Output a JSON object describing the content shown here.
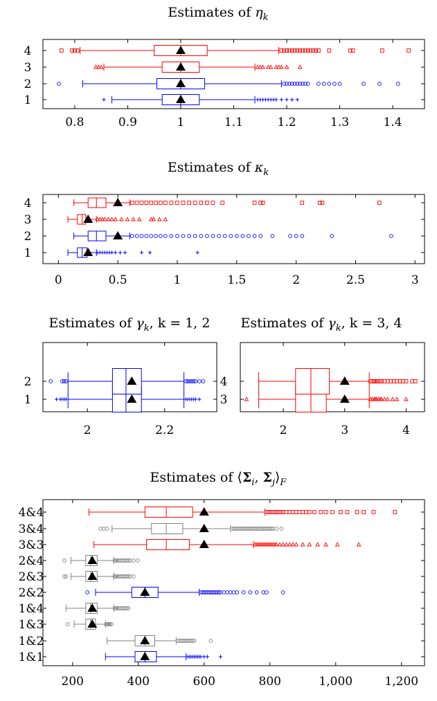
{
  "colors": {
    "blue": "#0000ff",
    "red": "#ff0000",
    "gray": "#808080",
    "mean": "#000000"
  },
  "chart_data": [
    {
      "type": "boxplot",
      "orientation": "horizontal",
      "title_prefix": "Estimates of ",
      "title_symbol": "η",
      "title_sub": "k",
      "title_suffix": "",
      "xlim": [
        0.74,
        1.46
      ],
      "xticks": [
        0.8,
        0.9,
        1,
        1.1,
        1.2,
        1.3,
        1.4
      ],
      "xtick_labels": [
        "0.8",
        "0.9",
        "1",
        "1.1",
        "1.2",
        "1.3",
        "1.4"
      ],
      "boxes": [
        {
          "label": "1",
          "color": "blue",
          "outlier": "plus",
          "whisker_low": 0.87,
          "q1": 0.965,
          "median": 1.0,
          "q3": 1.035,
          "whisker_high": 1.14,
          "mean": 1.0,
          "outliers_low": [
            0.855
          ],
          "outliers_high": [
            1.145,
            1.15,
            1.155,
            1.16,
            1.165,
            1.17,
            1.175,
            1.18,
            1.19,
            1.2,
            1.21,
            1.22
          ]
        },
        {
          "label": "2",
          "color": "blue",
          "outlier": "circle",
          "whisker_low": 0.815,
          "q1": 0.955,
          "median": 1.0,
          "q3": 1.045,
          "whisker_high": 1.19,
          "mean": 1.0,
          "outliers_low": [
            0.77
          ],
          "outliers_high": [
            1.195,
            1.2,
            1.205,
            1.21,
            1.215,
            1.22,
            1.225,
            1.23,
            1.235,
            1.24,
            1.26,
            1.27,
            1.28,
            1.29,
            1.3,
            1.345,
            1.375,
            1.41
          ]
        },
        {
          "label": "3",
          "color": "red",
          "outlier": "triangle",
          "whisker_low": 0.855,
          "q1": 0.965,
          "median": 1.0,
          "q3": 1.035,
          "whisker_high": 1.14,
          "mean": 1.0,
          "outliers_low": [
            0.84,
            0.845,
            0.85
          ],
          "outliers_high": [
            1.145,
            1.15,
            1.155,
            1.165,
            1.17,
            1.18,
            1.185,
            1.19,
            1.2,
            1.225
          ]
        },
        {
          "label": "4",
          "color": "red",
          "outlier": "square",
          "whisker_low": 0.81,
          "q1": 0.95,
          "median": 1.0,
          "q3": 1.05,
          "whisker_high": 1.185,
          "mean": 1.0,
          "outliers_low": [
            0.775,
            0.795,
            0.8,
            0.805
          ],
          "outliers_high": [
            1.19,
            1.195,
            1.2,
            1.205,
            1.21,
            1.215,
            1.22,
            1.225,
            1.23,
            1.235,
            1.24,
            1.245,
            1.25,
            1.255,
            1.26,
            1.28,
            1.32,
            1.325,
            1.38,
            1.43
          ]
        }
      ]
    },
    {
      "type": "boxplot",
      "orientation": "horizontal",
      "title_prefix": "Estimates of ",
      "title_symbol": "κ",
      "title_sub": "k",
      "title_suffix": "",
      "xlim": [
        -0.13,
        3.08
      ],
      "xticks": [
        0,
        0.5,
        1,
        1.5,
        2,
        2.5,
        3
      ],
      "xtick_labels": [
        "0",
        "0.5",
        "1",
        "1.5",
        "2",
        "2.5",
        "3"
      ],
      "boxes": [
        {
          "label": "1",
          "color": "blue",
          "outlier": "plus",
          "whisker_low": 0.08,
          "q1": 0.16,
          "median": 0.2,
          "q3": 0.24,
          "whisker_high": 0.32,
          "mean": 0.25,
          "outliers_low": [],
          "outliers_high": [
            0.33,
            0.35,
            0.37,
            0.39,
            0.41,
            0.43,
            0.45,
            0.48,
            0.52,
            0.56,
            0.7,
            0.77,
            1.17
          ]
        },
        {
          "label": "2",
          "color": "blue",
          "outlier": "circle",
          "whisker_low": 0.13,
          "q1": 0.25,
          "median": 0.32,
          "q3": 0.4,
          "whisker_high": 0.6,
          "mean": 0.5,
          "outliers_low": [],
          "outliers_high": [
            0.62,
            0.66,
            0.7,
            0.74,
            0.78,
            0.82,
            0.86,
            0.9,
            0.95,
            1.0,
            1.05,
            1.1,
            1.15,
            1.2,
            1.25,
            1.3,
            1.35,
            1.4,
            1.45,
            1.5,
            1.55,
            1.6,
            1.65,
            1.7,
            1.8,
            1.95,
            2.0,
            2.05,
            2.3,
            2.8
          ]
        },
        {
          "label": "3",
          "color": "red",
          "outlier": "triangle",
          "whisker_low": 0.08,
          "q1": 0.16,
          "median": 0.2,
          "q3": 0.23,
          "whisker_high": 0.32,
          "mean": 0.25,
          "outliers_low": [],
          "outliers_high": [
            0.33,
            0.35,
            0.37,
            0.39,
            0.42,
            0.45,
            0.48,
            0.53,
            0.58,
            0.63,
            0.68,
            0.78,
            0.8,
            0.85,
            0.9
          ]
        },
        {
          "label": "4",
          "color": "red",
          "outlier": "square",
          "whisker_low": 0.13,
          "q1": 0.25,
          "median": 0.32,
          "q3": 0.4,
          "whisker_high": 0.6,
          "mean": 0.5,
          "outliers_low": [],
          "outliers_high": [
            0.62,
            0.66,
            0.7,
            0.74,
            0.78,
            0.82,
            0.86,
            0.9,
            0.95,
            1.0,
            1.05,
            1.1,
            1.15,
            1.2,
            1.25,
            1.3,
            1.38,
            1.65,
            1.7,
            1.72,
            2.05,
            2.2,
            2.22,
            2.7
          ]
        }
      ]
    },
    {
      "type": "boxplot",
      "orientation": "horizontal",
      "title_prefix": "Estimates of ",
      "title_symbol": "γ",
      "title_sub": "k",
      "title_suffix": ", k = 1, 2",
      "xlim": [
        1.885,
        2.335
      ],
      "xticks": [
        2,
        2.2
      ],
      "xtick_labels": [
        "2",
        "2.2"
      ],
      "boxes": [
        {
          "label": "1",
          "color": "blue",
          "outlier": "plus",
          "whisker_low": 1.95,
          "q1": 2.065,
          "median": 2.1,
          "q3": 2.14,
          "whisker_high": 2.25,
          "mean": 2.115,
          "outliers_low": [
            1.92,
            1.93,
            1.935,
            1.94,
            1.945
          ],
          "outliers_high": [
            2.255,
            2.26,
            2.265,
            2.27,
            2.275,
            2.28,
            2.29
          ]
        },
        {
          "label": "2",
          "color": "blue",
          "outlier": "circle",
          "whisker_low": 1.95,
          "q1": 2.065,
          "median": 2.1,
          "q3": 2.14,
          "whisker_high": 2.25,
          "mean": 2.115,
          "outliers_low": [
            1.905,
            1.935,
            1.94,
            1.945
          ],
          "outliers_high": [
            2.255,
            2.26,
            2.265,
            2.27,
            2.275,
            2.28,
            2.29,
            2.3
          ]
        }
      ]
    },
    {
      "type": "boxplot",
      "orientation": "horizontal",
      "title_prefix": "Estimates of ",
      "title_symbol": "γ",
      "title_sub": "k",
      "title_suffix": ", k = 3, 4",
      "xlim": [
        1.3,
        4.3
      ],
      "xticks": [
        2,
        3,
        4
      ],
      "xtick_labels": [
        "2",
        "3",
        "4"
      ],
      "boxes": [
        {
          "label": "3",
          "color": "red",
          "outlier": "triangle",
          "whisker_low": 1.6,
          "q1": 2.2,
          "median": 2.45,
          "q3": 2.7,
          "whisker_high": 3.4,
          "mean": 3.0,
          "outliers_low": [
            1.4
          ],
          "outliers_high": [
            3.42,
            3.45,
            3.48,
            3.5,
            3.52,
            3.55,
            3.58,
            3.6,
            3.65,
            3.7,
            3.78,
            3.85,
            4.0
          ]
        },
        {
          "label": "4",
          "color": "red",
          "outlier": "square",
          "whisker_low": 1.6,
          "q1": 2.2,
          "median": 2.45,
          "q3": 2.75,
          "whisker_high": 3.4,
          "mean": 3.0,
          "outliers_low": [],
          "outliers_high": [
            3.42,
            3.45,
            3.48,
            3.5,
            3.52,
            3.55,
            3.58,
            3.6,
            3.65,
            3.7,
            3.75,
            3.8,
            3.85,
            3.9,
            3.95,
            4.0,
            4.1,
            4.15
          ]
        }
      ]
    },
    {
      "type": "boxplot",
      "orientation": "horizontal",
      "title_prefix": "Estimates of ⟨",
      "title_symbol": "Σ",
      "title_sub": "i",
      "title_mid": ", ",
      "title_symbol2": "Σ",
      "title_sub2": "j",
      "title_suffix": "⟩",
      "title_sub3": "F",
      "xlim": [
        110,
        1270
      ],
      "xticks": [
        200,
        400,
        600,
        800,
        1000,
        1200
      ],
      "xtick_labels": [
        "200",
        "400",
        "600",
        "800",
        "1,000",
        "1,200"
      ],
      "boxes": [
        {
          "label": "1&1",
          "color": "blue",
          "outlier": "plus",
          "whisker_low": 300,
          "q1": 390,
          "median": 420,
          "q3": 455,
          "whisker_high": 545,
          "mean": 420,
          "outliers_low": [],
          "outliers_high": [
            550,
            555,
            560,
            565,
            570,
            575,
            580,
            585,
            590,
            600,
            610,
            650
          ]
        },
        {
          "label": "1&2",
          "color": "gray",
          "outlier": "circle",
          "whisker_low": 305,
          "q1": 390,
          "median": 420,
          "q3": 450,
          "whisker_high": 515,
          "mean": 420,
          "outliers_low": [],
          "outliers_high": [
            520,
            525,
            530,
            535,
            540,
            545,
            550,
            555,
            560,
            565,
            570,
            620
          ]
        },
        {
          "label": "1&3",
          "color": "gray",
          "outlier": "circle",
          "whisker_low": 205,
          "q1": 240,
          "median": 255,
          "q3": 270,
          "whisker_high": 300,
          "mean": 260,
          "outliers_low": [
            185
          ],
          "outliers_high": [
            302,
            305,
            308,
            311,
            314,
            318
          ]
        },
        {
          "label": "1&4",
          "color": "gray",
          "outlier": "circle",
          "whisker_low": 180,
          "q1": 240,
          "median": 255,
          "q3": 275,
          "whisker_high": 325,
          "mean": 260,
          "outliers_low": [],
          "outliers_high": [
            328,
            332,
            336,
            340,
            345,
            350,
            355,
            360,
            365,
            370
          ]
        },
        {
          "label": "2&2",
          "color": "blue",
          "outlier": "circle",
          "whisker_low": 270,
          "q1": 380,
          "median": 420,
          "q3": 460,
          "whisker_high": 585,
          "mean": 420,
          "outliers_low": [
            245
          ],
          "outliers_high": [
            590,
            595,
            600,
            605,
            610,
            615,
            620,
            625,
            630,
            635,
            640,
            645,
            650,
            660,
            670,
            680,
            690,
            700,
            720,
            740,
            760,
            780,
            790,
            840
          ]
        },
        {
          "label": "2&3",
          "color": "gray",
          "outlier": "circle",
          "whisker_low": 195,
          "q1": 240,
          "median": 255,
          "q3": 275,
          "whisker_high": 325,
          "mean": 260,
          "outliers_low": [
            175,
            180
          ],
          "outliers_high": [
            328,
            332,
            336,
            340,
            345,
            350,
            355,
            360,
            365,
            370,
            375,
            385
          ]
        },
        {
          "label": "2&4",
          "color": "gray",
          "outlier": "circle",
          "whisker_low": 195,
          "q1": 240,
          "median": 255,
          "q3": 275,
          "whisker_high": 325,
          "mean": 260,
          "outliers_low": [
            175
          ],
          "outliers_high": [
            328,
            332,
            336,
            340,
            345,
            350,
            355,
            360,
            365,
            370,
            375,
            385,
            398
          ]
        },
        {
          "label": "3&3",
          "color": "red",
          "outlier": "triangle",
          "whisker_low": 265,
          "q1": 425,
          "median": 485,
          "q3": 555,
          "whisker_high": 750,
          "mean": 600,
          "outliers_low": [],
          "outliers_high": [
            755,
            760,
            765,
            770,
            775,
            780,
            785,
            790,
            795,
            800,
            805,
            810,
            815,
            820,
            830,
            840,
            850,
            860,
            870,
            880,
            900,
            920,
            945,
            970,
            1005,
            1070
          ]
        },
        {
          "label": "3&4",
          "color": "gray",
          "outlier": "circle",
          "whisker_low": 320,
          "q1": 440,
          "median": 485,
          "q3": 535,
          "whisker_high": 680,
          "mean": 600,
          "outliers_low": [
            285,
            295,
            305
          ],
          "outliers_high": [
            685,
            690,
            695,
            700,
            705,
            710,
            715,
            720,
            725,
            730,
            735,
            740,
            745,
            750,
            755,
            760,
            765,
            770,
            775,
            780,
            785,
            790,
            795,
            800,
            805,
            810,
            820,
            835
          ]
        },
        {
          "label": "4&4",
          "color": "red",
          "outlier": "square",
          "whisker_low": 250,
          "q1": 420,
          "median": 485,
          "q3": 565,
          "whisker_high": 785,
          "mean": 600,
          "outliers_low": [],
          "outliers_high": [
            790,
            795,
            800,
            805,
            810,
            815,
            820,
            825,
            830,
            835,
            840,
            850,
            860,
            870,
            880,
            890,
            900,
            910,
            920,
            935,
            955,
            970,
            990,
            1015,
            1035,
            1065,
            1085,
            1115,
            1180
          ]
        }
      ]
    }
  ]
}
